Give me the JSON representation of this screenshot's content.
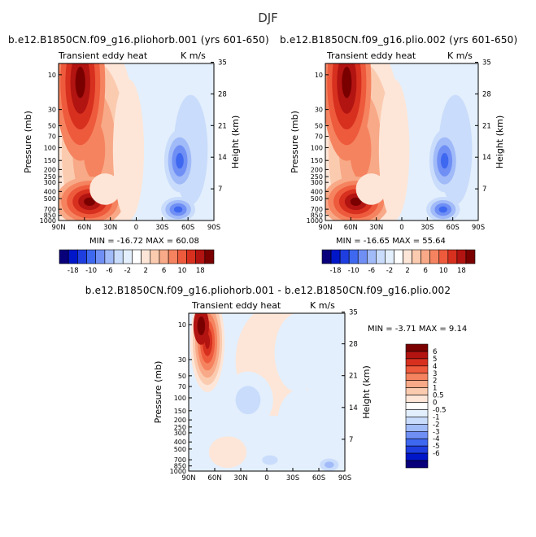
{
  "page": {
    "main_title": "DJF"
  },
  "colors": {
    "scale": [
      "#08007a",
      "#0016c9",
      "#1e3ee0",
      "#3e68ef",
      "#6f8ff5",
      "#a1baf8",
      "#c9dcfb",
      "#e3effc",
      "#ffffff",
      "#fde6d8",
      "#fbcbb0",
      "#f8a987",
      "#f5835f",
      "#ee5a3c",
      "#d7301f",
      "#b21411",
      "#7a0000"
    ]
  },
  "chart_data": [
    {
      "type": "heatmap",
      "id": "panel1",
      "title": "b.e12.B1850CN.f09_g16.pliohorb.001 (yrs 601-650)",
      "left_label": "Transient eddy heat",
      "right_label": "K m/s",
      "xlabel": "",
      "ylabel": "Pressure (mb)",
      "y2label": "Height (km)",
      "x_ticks": [
        "90N",
        "60N",
        "30N",
        "0",
        "30S",
        "60S",
        "90S"
      ],
      "y_ticks": [
        "10",
        "30",
        "50",
        "70",
        "100",
        "150",
        "200",
        "250",
        "300",
        "400",
        "500",
        "700",
        "850",
        "1000"
      ],
      "y2_ticks": [
        "35",
        "28",
        "21",
        "14",
        "7"
      ],
      "min_label": "MIN =",
      "min": "-16.72",
      "max_label": "MAX =",
      "max": "60.08",
      "colorbar_levels": [
        "-18",
        "-10",
        "-6",
        "-2",
        "2",
        "6",
        "10",
        "18"
      ]
    },
    {
      "type": "heatmap",
      "id": "panel2",
      "title": "b.e12.B1850CN.f09_g16.plio.002 (yrs 601-650)",
      "left_label": "Transient eddy heat",
      "right_label": "K m/s",
      "xlabel": "",
      "ylabel": "Pressure (mb)",
      "y2label": "Height (km)",
      "x_ticks": [
        "90N",
        "60N",
        "30N",
        "0",
        "30S",
        "60S",
        "90S"
      ],
      "y_ticks": [
        "10",
        "30",
        "50",
        "70",
        "100",
        "150",
        "200",
        "250",
        "300",
        "400",
        "500",
        "700",
        "850",
        "1000"
      ],
      "y2_ticks": [
        "35",
        "28",
        "21",
        "14",
        "7"
      ],
      "min_label": "MIN =",
      "min": "-16.65",
      "max_label": "MAX =",
      "max": "55.64",
      "colorbar_levels": [
        "-18",
        "-10",
        "-6",
        "-2",
        "2",
        "6",
        "10",
        "18"
      ]
    },
    {
      "type": "heatmap",
      "id": "panel3",
      "title": "b.e12.B1850CN.f09_g16.pliohorb.001 - b.e12.B1850CN.f09_g16.plio.002",
      "left_label": "Transient eddy heat",
      "right_label": "K m/s",
      "xlabel": "",
      "ylabel": "Pressure (mb)",
      "y2label": "Height (km)",
      "x_ticks": [
        "90N",
        "60N",
        "30N",
        "0",
        "30S",
        "60S",
        "90S"
      ],
      "y_ticks": [
        "10",
        "30",
        "50",
        "70",
        "100",
        "150",
        "200",
        "250",
        "300",
        "400",
        "500",
        "700",
        "850",
        "1000"
      ],
      "y2_ticks": [
        "35",
        "28",
        "21",
        "14",
        "7"
      ],
      "min_label": "MIN =",
      "min": "-3.71",
      "max_label": "MAX =",
      "max": "9.14",
      "colorbar_levels": [
        "6",
        "5",
        "4",
        "3",
        "2",
        "1",
        "0.5",
        "0",
        "-0.5",
        "-1",
        "-2",
        "-3",
        "-4",
        "-5",
        "-6"
      ]
    }
  ]
}
